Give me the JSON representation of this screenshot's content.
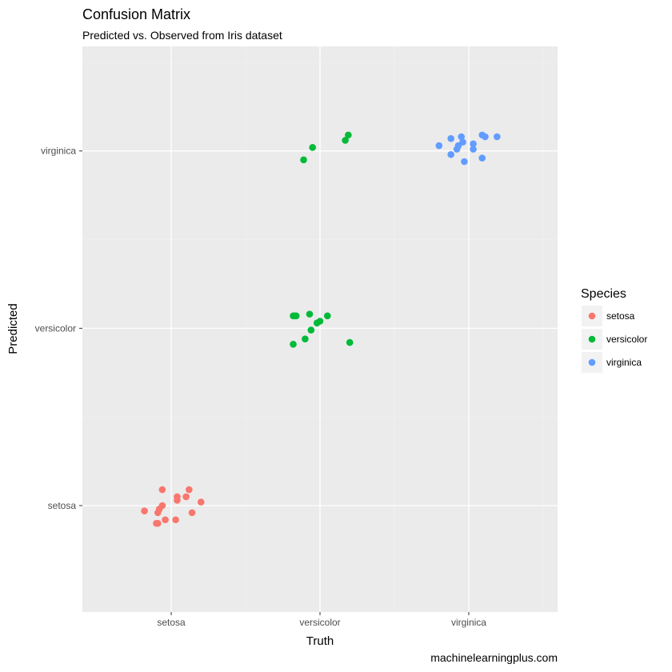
{
  "chart_data": {
    "type": "scatter",
    "title": "Confusion Matrix",
    "subtitle": "Predicted vs. Observed from Iris dataset",
    "xlabel": "Truth",
    "ylabel": "Predicted",
    "caption": "machinelearningplus.com",
    "x_categories": [
      "setosa",
      "versicolor",
      "virginica"
    ],
    "y_categories": [
      "setosa",
      "versicolor",
      "virginica"
    ],
    "xlim": [
      0.403,
      3.597
    ],
    "ylim": [
      0.4,
      3.707
    ],
    "grid": true,
    "legend": {
      "title": "Species",
      "placement": "right",
      "entries": [
        "setosa",
        "versicolor",
        "virginica"
      ]
    },
    "colors": {
      "setosa": "#F8766D",
      "versicolor": "#00BA38",
      "virginica": "#619CFF"
    },
    "series": [
      {
        "name": "setosa",
        "points": [
          [
            0.94,
            1.09
          ],
          [
            1.12,
            1.09
          ],
          [
            1.04,
            1.05
          ],
          [
            1.04,
            1.03
          ],
          [
            1.1,
            1.05
          ],
          [
            1.2,
            1.02
          ],
          [
            0.82,
            0.97
          ],
          [
            0.94,
            1.0
          ],
          [
            0.92,
            0.98
          ],
          [
            0.91,
            0.96
          ],
          [
            1.14,
            0.96
          ],
          [
            0.96,
            0.92
          ],
          [
            1.03,
            0.92
          ],
          [
            0.9,
            0.9
          ],
          [
            0.91,
            0.9
          ]
        ]
      },
      {
        "name": "versicolor",
        "points": [
          [
            1.82,
            2.07
          ],
          [
            1.84,
            2.07
          ],
          [
            1.83,
            2.07
          ],
          [
            1.93,
            2.08
          ],
          [
            2.05,
            2.07
          ],
          [
            1.98,
            2.03
          ],
          [
            2.0,
            2.04
          ],
          [
            1.94,
            1.99
          ],
          [
            1.9,
            1.94
          ],
          [
            1.82,
            1.91
          ],
          [
            2.2,
            1.92
          ],
          [
            1.95,
            3.02
          ],
          [
            1.89,
            2.95
          ],
          [
            2.17,
            3.06
          ],
          [
            2.19,
            3.09
          ]
        ]
      },
      {
        "name": "virginica",
        "points": [
          [
            2.8,
            3.03
          ],
          [
            2.88,
            3.07
          ],
          [
            2.95,
            3.08
          ],
          [
            2.96,
            3.05
          ],
          [
            2.93,
            3.03
          ],
          [
            2.92,
            3.01
          ],
          [
            2.88,
            2.98
          ],
          [
            2.97,
            2.94
          ],
          [
            3.03,
            3.04
          ],
          [
            3.03,
            3.01
          ],
          [
            3.09,
            3.09
          ],
          [
            3.11,
            3.08
          ],
          [
            3.19,
            3.08
          ],
          [
            3.09,
            2.96
          ]
        ]
      }
    ]
  }
}
